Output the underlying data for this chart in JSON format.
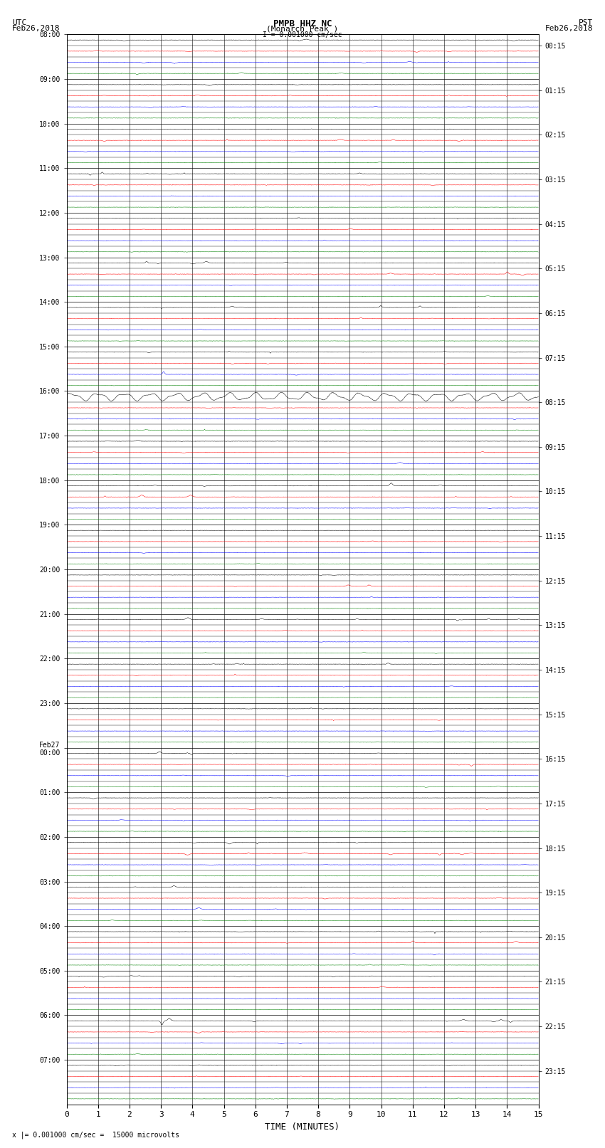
{
  "title_line1": "PMPB HHZ NC",
  "title_line2": "(Monarch Peak )",
  "scale_label": "I = 0.001000 cm/sec",
  "footer_label": "x |= 0.001000 cm/sec =  15000 microvolts",
  "utc_label": "UTC\nFeb26,2018",
  "pst_label": "PST\nFeb26,2018",
  "xlabel": "TIME (MINUTES)",
  "left_times": [
    "08:00",
    "09:00",
    "10:00",
    "11:00",
    "12:00",
    "13:00",
    "14:00",
    "15:00",
    "16:00",
    "17:00",
    "18:00",
    "19:00",
    "20:00",
    "21:00",
    "22:00",
    "23:00",
    "Feb27\n00:00",
    "01:00",
    "02:00",
    "03:00",
    "04:00",
    "05:00",
    "06:00",
    "07:00"
  ],
  "right_times": [
    "00:15",
    "01:15",
    "02:15",
    "03:15",
    "04:15",
    "05:15",
    "06:15",
    "07:15",
    "08:15",
    "09:15",
    "10:15",
    "11:15",
    "12:15",
    "13:15",
    "14:15",
    "15:15",
    "16:15",
    "17:15",
    "18:15",
    "19:15",
    "20:15",
    "21:15",
    "22:15",
    "23:15"
  ],
  "n_hour_blocks": 24,
  "traces_per_block": 4,
  "row_colors": [
    "black",
    "red",
    "blue",
    "green"
  ],
  "bg_color": "white",
  "grid_color": "black",
  "trace_amplitude_small": 0.06,
  "trace_amplitude_medium": 0.12,
  "noise_base": 0.008,
  "special_block": 8,
  "special_trace": 0,
  "special_amplitude": 0.35,
  "xticks": [
    0,
    1,
    2,
    3,
    4,
    5,
    6,
    7,
    8,
    9,
    10,
    11,
    12,
    13,
    14,
    15
  ],
  "xlim": [
    0,
    15
  ],
  "fig_width": 8.5,
  "fig_height": 16.13,
  "dpi": 100
}
